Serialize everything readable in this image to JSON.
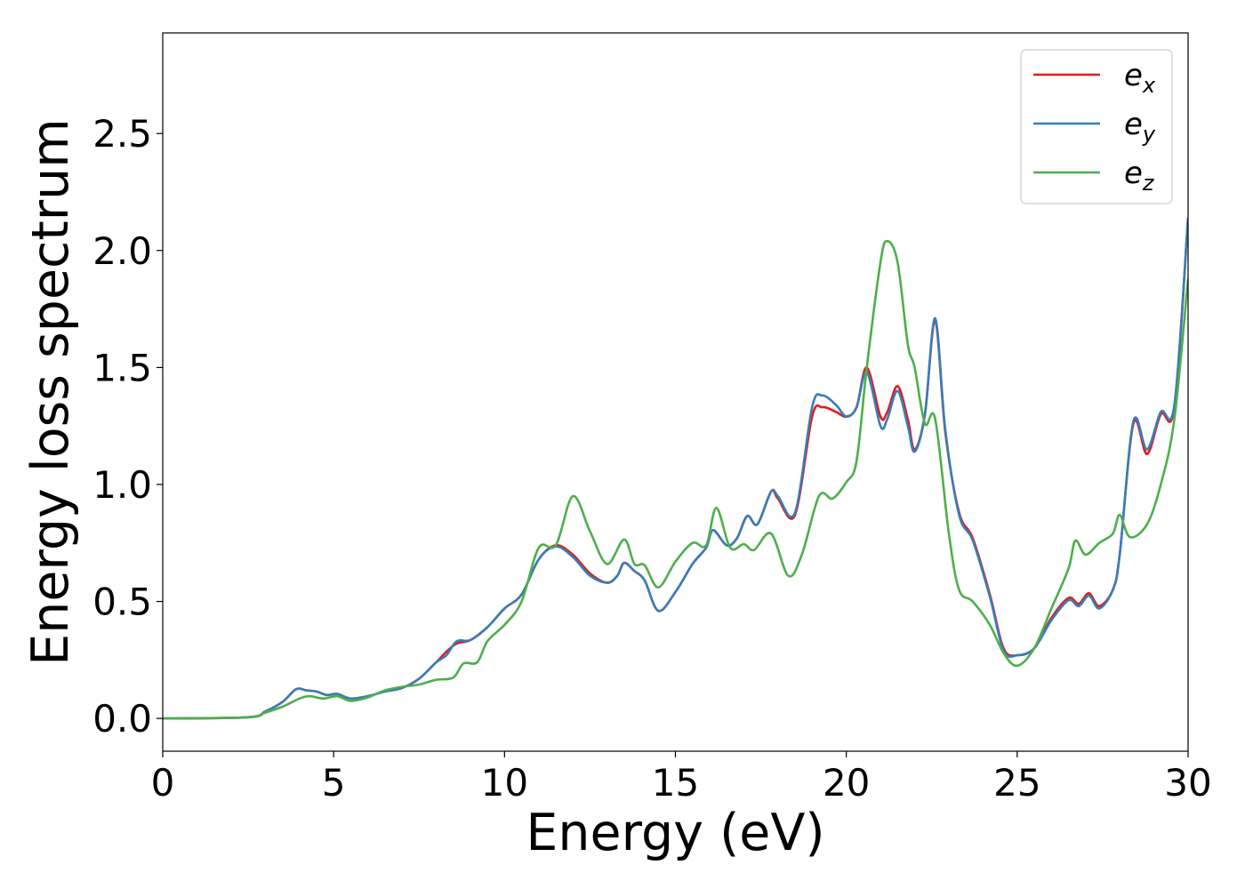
{
  "chart_data": {
    "type": "line",
    "xlabel": "Energy (eV)",
    "ylabel": "Energy loss spectrum",
    "xlim": [
      0,
      30
    ],
    "ylim": [
      -0.14,
      2.93
    ],
    "xticks": [
      "0",
      "5",
      "10",
      "15",
      "20",
      "25",
      "30"
    ],
    "yticks": [
      "0.0",
      "0.5",
      "1.0",
      "1.5",
      "2.0",
      "2.5"
    ],
    "grid": false,
    "legend_position": "top-right",
    "series": [
      {
        "name": "e",
        "subscript": "x",
        "color": "#e41a1c",
        "points": [
          [
            0,
            0
          ],
          [
            2.5,
            0.005
          ],
          [
            3,
            0.03
          ],
          [
            3.5,
            0.07
          ],
          [
            3.9,
            0.125
          ],
          [
            4.2,
            0.12
          ],
          [
            4.5,
            0.115
          ],
          [
            4.8,
            0.1
          ],
          [
            5.1,
            0.105
          ],
          [
            5.5,
            0.085
          ],
          [
            6,
            0.095
          ],
          [
            6.5,
            0.115
          ],
          [
            7,
            0.13
          ],
          [
            7.5,
            0.17
          ],
          [
            8,
            0.24
          ],
          [
            8.3,
            0.285
          ],
          [
            8.6,
            0.32
          ],
          [
            9,
            0.335
          ],
          [
            9.5,
            0.39
          ],
          [
            10,
            0.47
          ],
          [
            10.5,
            0.53
          ],
          [
            11,
            0.68
          ],
          [
            11.5,
            0.74
          ],
          [
            12,
            0.7
          ],
          [
            12.5,
            0.62
          ],
          [
            13,
            0.58
          ],
          [
            13.3,
            0.61
          ],
          [
            13.5,
            0.665
          ],
          [
            13.8,
            0.63
          ],
          [
            14.1,
            0.59
          ],
          [
            14.5,
            0.46
          ],
          [
            15,
            0.54
          ],
          [
            15.5,
            0.66
          ],
          [
            15.9,
            0.73
          ],
          [
            16.1,
            0.805
          ],
          [
            16.5,
            0.74
          ],
          [
            16.8,
            0.77
          ],
          [
            17.1,
            0.865
          ],
          [
            17.4,
            0.83
          ],
          [
            17.8,
            0.97
          ],
          [
            18,
            0.94
          ],
          [
            18.5,
            0.87
          ],
          [
            19,
            1.29
          ],
          [
            19.3,
            1.33
          ],
          [
            19.7,
            1.31
          ],
          [
            20,
            1.29
          ],
          [
            20.3,
            1.33
          ],
          [
            20.6,
            1.5
          ],
          [
            21,
            1.29
          ],
          [
            21.2,
            1.31
          ],
          [
            21.5,
            1.42
          ],
          [
            21.8,
            1.28
          ],
          [
            22,
            1.15
          ],
          [
            22.3,
            1.3
          ],
          [
            22.6,
            1.7
          ],
          [
            22.9,
            1.22
          ],
          [
            23.3,
            0.88
          ],
          [
            23.7,
            0.77
          ],
          [
            24.2,
            0.53
          ],
          [
            24.6,
            0.3
          ],
          [
            25,
            0.27
          ],
          [
            25.5,
            0.3
          ],
          [
            26,
            0.43
          ],
          [
            26.5,
            0.515
          ],
          [
            26.8,
            0.49
          ],
          [
            27.1,
            0.535
          ],
          [
            27.4,
            0.48
          ],
          [
            27.8,
            0.55
          ],
          [
            28,
            0.7
          ],
          [
            28.4,
            1.26
          ],
          [
            28.8,
            1.13
          ],
          [
            29.2,
            1.3
          ],
          [
            29.6,
            1.33
          ],
          [
            30,
            2.14
          ]
        ]
      },
      {
        "name": "e",
        "subscript": "y",
        "color": "#377eb8",
        "points": [
          [
            0,
            0
          ],
          [
            2.5,
            0.005
          ],
          [
            3,
            0.03
          ],
          [
            3.5,
            0.07
          ],
          [
            3.9,
            0.125
          ],
          [
            4.2,
            0.12
          ],
          [
            4.5,
            0.115
          ],
          [
            4.8,
            0.1
          ],
          [
            5.1,
            0.105
          ],
          [
            5.5,
            0.085
          ],
          [
            6,
            0.095
          ],
          [
            6.5,
            0.115
          ],
          [
            7,
            0.13
          ],
          [
            7.5,
            0.17
          ],
          [
            8,
            0.24
          ],
          [
            8.3,
            0.27
          ],
          [
            8.6,
            0.33
          ],
          [
            9,
            0.335
          ],
          [
            9.5,
            0.39
          ],
          [
            10,
            0.47
          ],
          [
            10.5,
            0.53
          ],
          [
            11,
            0.68
          ],
          [
            11.5,
            0.735
          ],
          [
            12,
            0.69
          ],
          [
            12.5,
            0.61
          ],
          [
            13,
            0.58
          ],
          [
            13.3,
            0.61
          ],
          [
            13.5,
            0.665
          ],
          [
            13.8,
            0.63
          ],
          [
            14.1,
            0.59
          ],
          [
            14.5,
            0.46
          ],
          [
            15,
            0.54
          ],
          [
            15.5,
            0.66
          ],
          [
            15.9,
            0.73
          ],
          [
            16.1,
            0.805
          ],
          [
            16.5,
            0.74
          ],
          [
            16.8,
            0.77
          ],
          [
            17.1,
            0.865
          ],
          [
            17.4,
            0.83
          ],
          [
            17.8,
            0.97
          ],
          [
            18,
            0.95
          ],
          [
            18.5,
            0.88
          ],
          [
            19,
            1.33
          ],
          [
            19.3,
            1.38
          ],
          [
            19.7,
            1.34
          ],
          [
            20,
            1.29
          ],
          [
            20.3,
            1.33
          ],
          [
            20.6,
            1.48
          ],
          [
            21,
            1.25
          ],
          [
            21.2,
            1.28
          ],
          [
            21.5,
            1.4
          ],
          [
            21.8,
            1.25
          ],
          [
            22,
            1.14
          ],
          [
            22.3,
            1.3
          ],
          [
            22.6,
            1.71
          ],
          [
            22.9,
            1.23
          ],
          [
            23.3,
            0.87
          ],
          [
            23.7,
            0.76
          ],
          [
            24.2,
            0.52
          ],
          [
            24.6,
            0.29
          ],
          [
            25,
            0.27
          ],
          [
            25.5,
            0.3
          ],
          [
            26,
            0.42
          ],
          [
            26.5,
            0.505
          ],
          [
            26.8,
            0.48
          ],
          [
            27.1,
            0.525
          ],
          [
            27.4,
            0.47
          ],
          [
            27.8,
            0.55
          ],
          [
            28,
            0.7
          ],
          [
            28.4,
            1.27
          ],
          [
            28.8,
            1.15
          ],
          [
            29.2,
            1.31
          ],
          [
            29.6,
            1.34
          ],
          [
            30,
            2.14
          ]
        ]
      },
      {
        "name": "e",
        "subscript": "z",
        "color": "#4daf4a",
        "points": [
          [
            0,
            0
          ],
          [
            2.5,
            0.005
          ],
          [
            3,
            0.025
          ],
          [
            3.5,
            0.05
          ],
          [
            4,
            0.085
          ],
          [
            4.3,
            0.095
          ],
          [
            4.7,
            0.085
          ],
          [
            5.1,
            0.095
          ],
          [
            5.5,
            0.075
          ],
          [
            6,
            0.09
          ],
          [
            6.5,
            0.12
          ],
          [
            7,
            0.135
          ],
          [
            7.5,
            0.145
          ],
          [
            8,
            0.165
          ],
          [
            8.5,
            0.175
          ],
          [
            8.8,
            0.235
          ],
          [
            9.2,
            0.24
          ],
          [
            9.5,
            0.33
          ],
          [
            10,
            0.4
          ],
          [
            10.5,
            0.5
          ],
          [
            11,
            0.73
          ],
          [
            11.5,
            0.74
          ],
          [
            12,
            0.95
          ],
          [
            12.5,
            0.8
          ],
          [
            13,
            0.66
          ],
          [
            13.5,
            0.765
          ],
          [
            13.8,
            0.66
          ],
          [
            14.1,
            0.655
          ],
          [
            14.5,
            0.56
          ],
          [
            15,
            0.67
          ],
          [
            15.5,
            0.75
          ],
          [
            15.9,
            0.74
          ],
          [
            16.2,
            0.9
          ],
          [
            16.6,
            0.73
          ],
          [
            17,
            0.745
          ],
          [
            17.3,
            0.72
          ],
          [
            17.8,
            0.79
          ],
          [
            18.3,
            0.61
          ],
          [
            18.7,
            0.7
          ],
          [
            19.2,
            0.95
          ],
          [
            19.6,
            0.94
          ],
          [
            20,
            1.01
          ],
          [
            20.3,
            1.1
          ],
          [
            20.6,
            1.5
          ],
          [
            21,
            1.95
          ],
          [
            21.2,
            2.04
          ],
          [
            21.5,
            1.95
          ],
          [
            21.8,
            1.6
          ],
          [
            22,
            1.5
          ],
          [
            22.3,
            1.26
          ],
          [
            22.6,
            1.28
          ],
          [
            23,
            0.79
          ],
          [
            23.3,
            0.55
          ],
          [
            23.7,
            0.5
          ],
          [
            24.2,
            0.4
          ],
          [
            24.6,
            0.28
          ],
          [
            25,
            0.225
          ],
          [
            25.5,
            0.3
          ],
          [
            26,
            0.47
          ],
          [
            26.5,
            0.64
          ],
          [
            26.7,
            0.76
          ],
          [
            27,
            0.7
          ],
          [
            27.4,
            0.75
          ],
          [
            27.8,
            0.79
          ],
          [
            28,
            0.87
          ],
          [
            28.3,
            0.775
          ],
          [
            28.8,
            0.83
          ],
          [
            29.2,
            1.0
          ],
          [
            29.6,
            1.28
          ],
          [
            30,
            1.88
          ]
        ]
      }
    ]
  }
}
